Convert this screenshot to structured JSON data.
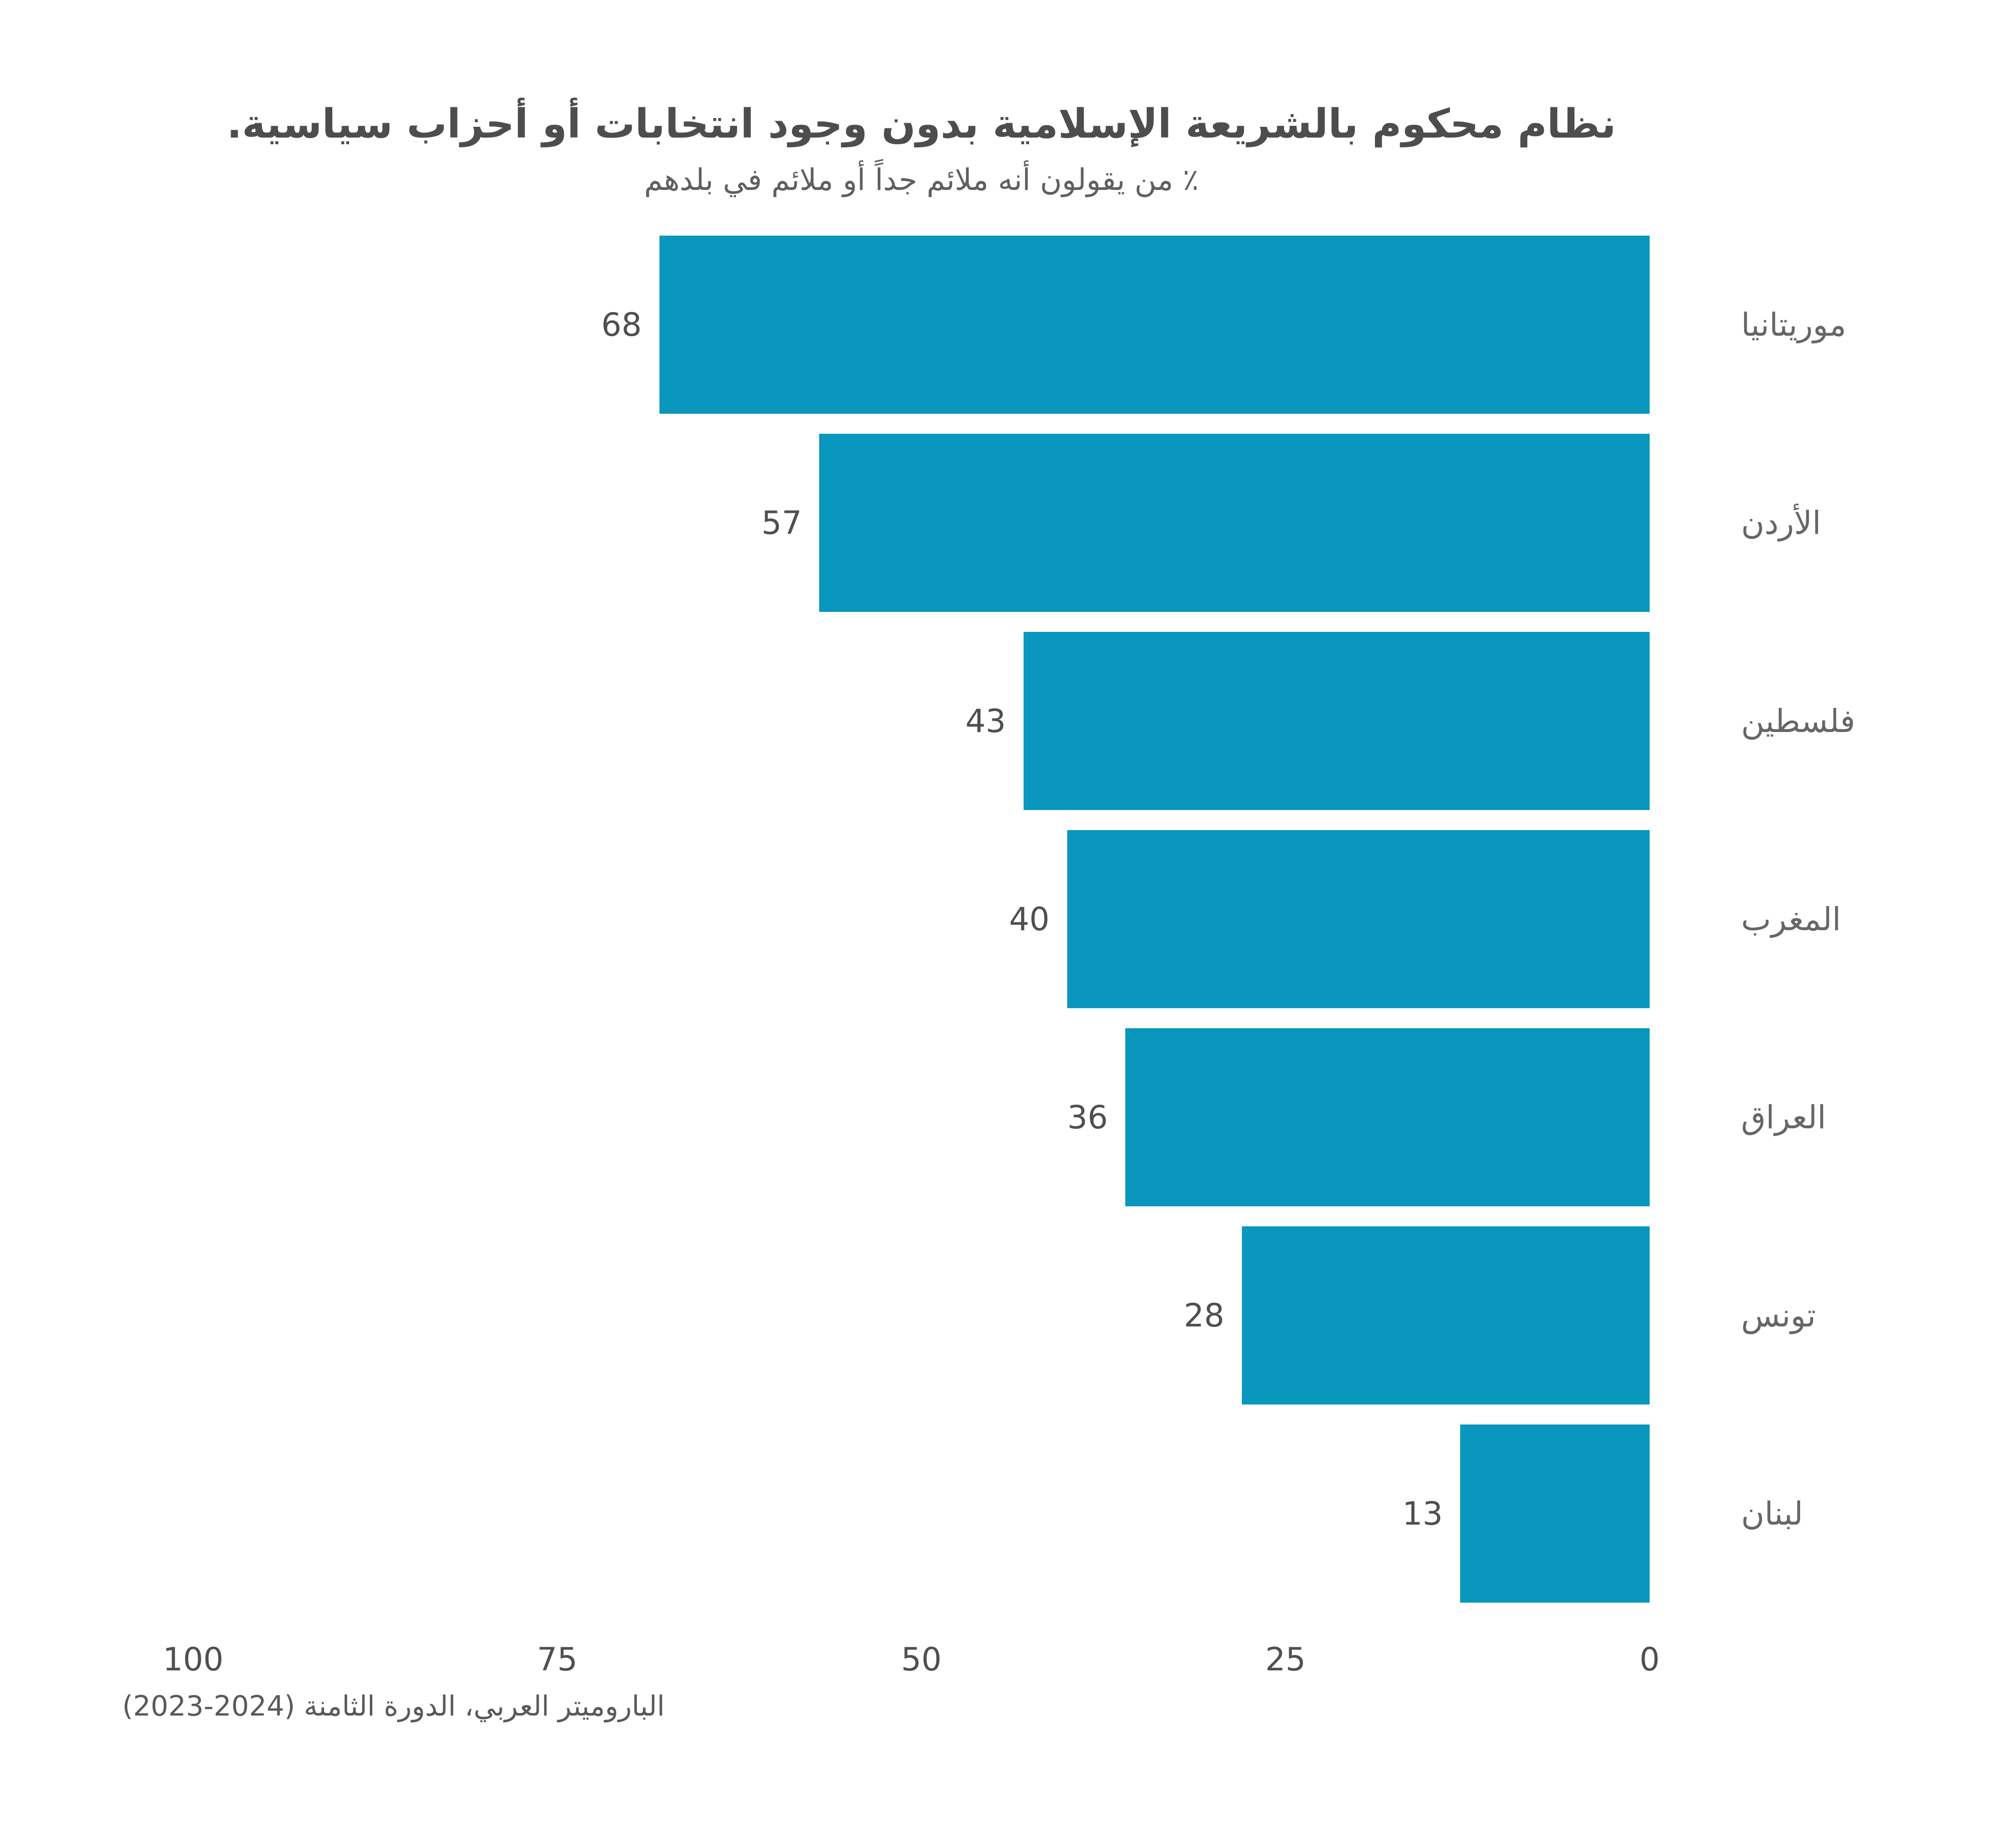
{
  "chart_data": {
    "type": "bar",
    "orientation": "horizontal",
    "value_axis_direction": "rtl-zero-at-right",
    "title": "نظام محكوم بالشريعة الإسلامية بدون وجود انتخابات أو أحزاب سياسية.",
    "subtitle": "٪ من يقولون أنه ملائم جداً أو ملائم في بلدهم",
    "categories": [
      "موريتانيا",
      "الأردن",
      "فلسطين",
      "المغرب",
      "العراق",
      "تونس",
      "لبنان"
    ],
    "values": [
      68,
      57,
      43,
      40,
      36,
      28,
      13
    ],
    "xlabel": "",
    "ylabel": "",
    "xlim": [
      0,
      100
    ],
    "x_ticks": [
      100,
      75,
      50,
      25,
      0
    ],
    "grid": false,
    "legend": false,
    "value_labels_shown": true,
    "source": "الباروميتر العربي، الدورة الثامنة (2024-2023)"
  },
  "colors": {
    "bar": "#0997be",
    "title": "#4d4d4d",
    "subtitle": "#5f5f5f",
    "value_label": "#4f4f4f",
    "category_label": "#666666",
    "tick_label": "#4f4f4f",
    "source": "#595959",
    "background": "#ffffff"
  }
}
